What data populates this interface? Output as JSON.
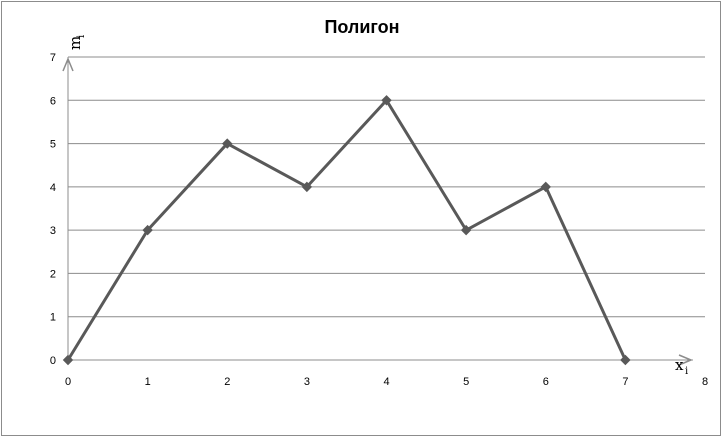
{
  "chart_data": {
    "type": "line",
    "title": "Полигон",
    "xlabel": "x",
    "xlabel_sub": "i",
    "ylabel": "m",
    "ylabel_sub": "i",
    "x": [
      0,
      1,
      2,
      3,
      4,
      5,
      6,
      7
    ],
    "y": [
      0,
      3,
      5,
      4,
      6,
      3,
      4,
      0
    ],
    "x_ticks": [
      0,
      1,
      2,
      3,
      4,
      5,
      6,
      7,
      8
    ],
    "y_ticks": [
      0,
      1,
      2,
      3,
      4,
      5,
      6,
      7
    ],
    "xlim": [
      0,
      8
    ],
    "ylim": [
      0,
      7
    ],
    "grid": "horizontal",
    "legend": "none",
    "line_color": "#595959",
    "grid_color": "#8c8c8c",
    "axis_color": "#8c8c8c",
    "marker": "diamond"
  }
}
